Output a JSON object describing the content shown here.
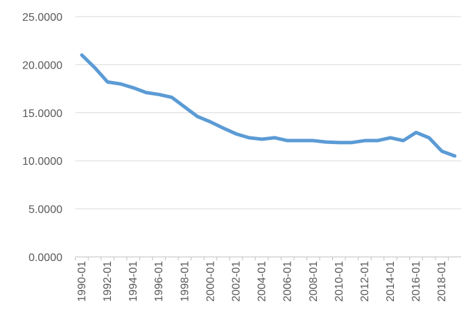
{
  "chart_data": {
    "type": "line",
    "categories": [
      "1990-01",
      null,
      "1992-01",
      null,
      "1994-01",
      null,
      "1996-01",
      null,
      "1998-01",
      null,
      "2000-01",
      null,
      "2002-01",
      null,
      "2004-01",
      null,
      "2006-01",
      null,
      "2008-01",
      null,
      "2010-01",
      null,
      "2012-01",
      null,
      "2014-01",
      null,
      "2016-01",
      null,
      "2018-01",
      null
    ],
    "values": [
      21.0,
      19.7,
      18.2,
      18.0,
      17.6,
      17.1,
      16.9,
      16.6,
      15.6,
      14.6,
      14.05,
      13.4,
      12.8,
      12.4,
      12.25,
      12.4,
      12.1,
      12.1,
      12.1,
      11.95,
      11.9,
      11.9,
      12.1,
      12.1,
      12.4,
      12.1,
      12.95,
      12.4,
      11.0,
      10.5
    ],
    "color": "#5b9bd5",
    "ylim": [
      0,
      25
    ],
    "yticks": [
      {
        "value": 0,
        "label": "0.0000"
      },
      {
        "value": 5,
        "label": "5.0000"
      },
      {
        "value": 10,
        "label": "10.0000"
      },
      {
        "value": 15,
        "label": "15.0000"
      },
      {
        "value": 20,
        "label": "20.0000"
      },
      {
        "value": 25,
        "label": "25.0000"
      }
    ],
    "grid": true
  }
}
